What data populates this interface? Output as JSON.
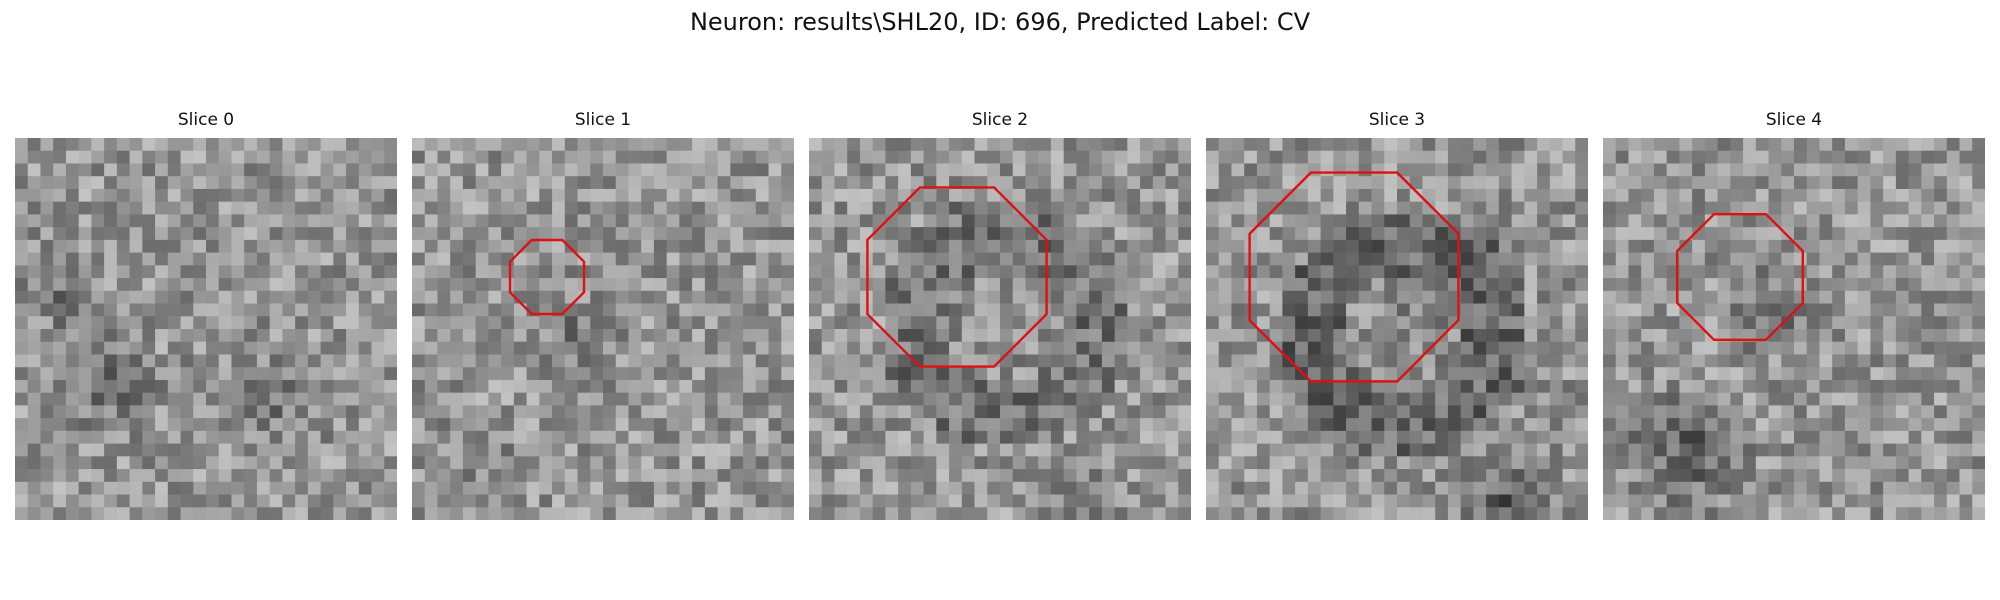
{
  "figure": {
    "title": "Neuron: results\\SHL20, ID: 696, Predicted Label: CV",
    "outline_color": "#e01010"
  },
  "slices": [
    {
      "title": "Slice 0",
      "has_outline": false
    },
    {
      "title": "Slice 1",
      "has_outline": true
    },
    {
      "title": "Slice 2",
      "has_outline": true
    },
    {
      "title": "Slice 3",
      "has_outline": true
    },
    {
      "title": "Slice 4",
      "has_outline": true
    }
  ]
}
